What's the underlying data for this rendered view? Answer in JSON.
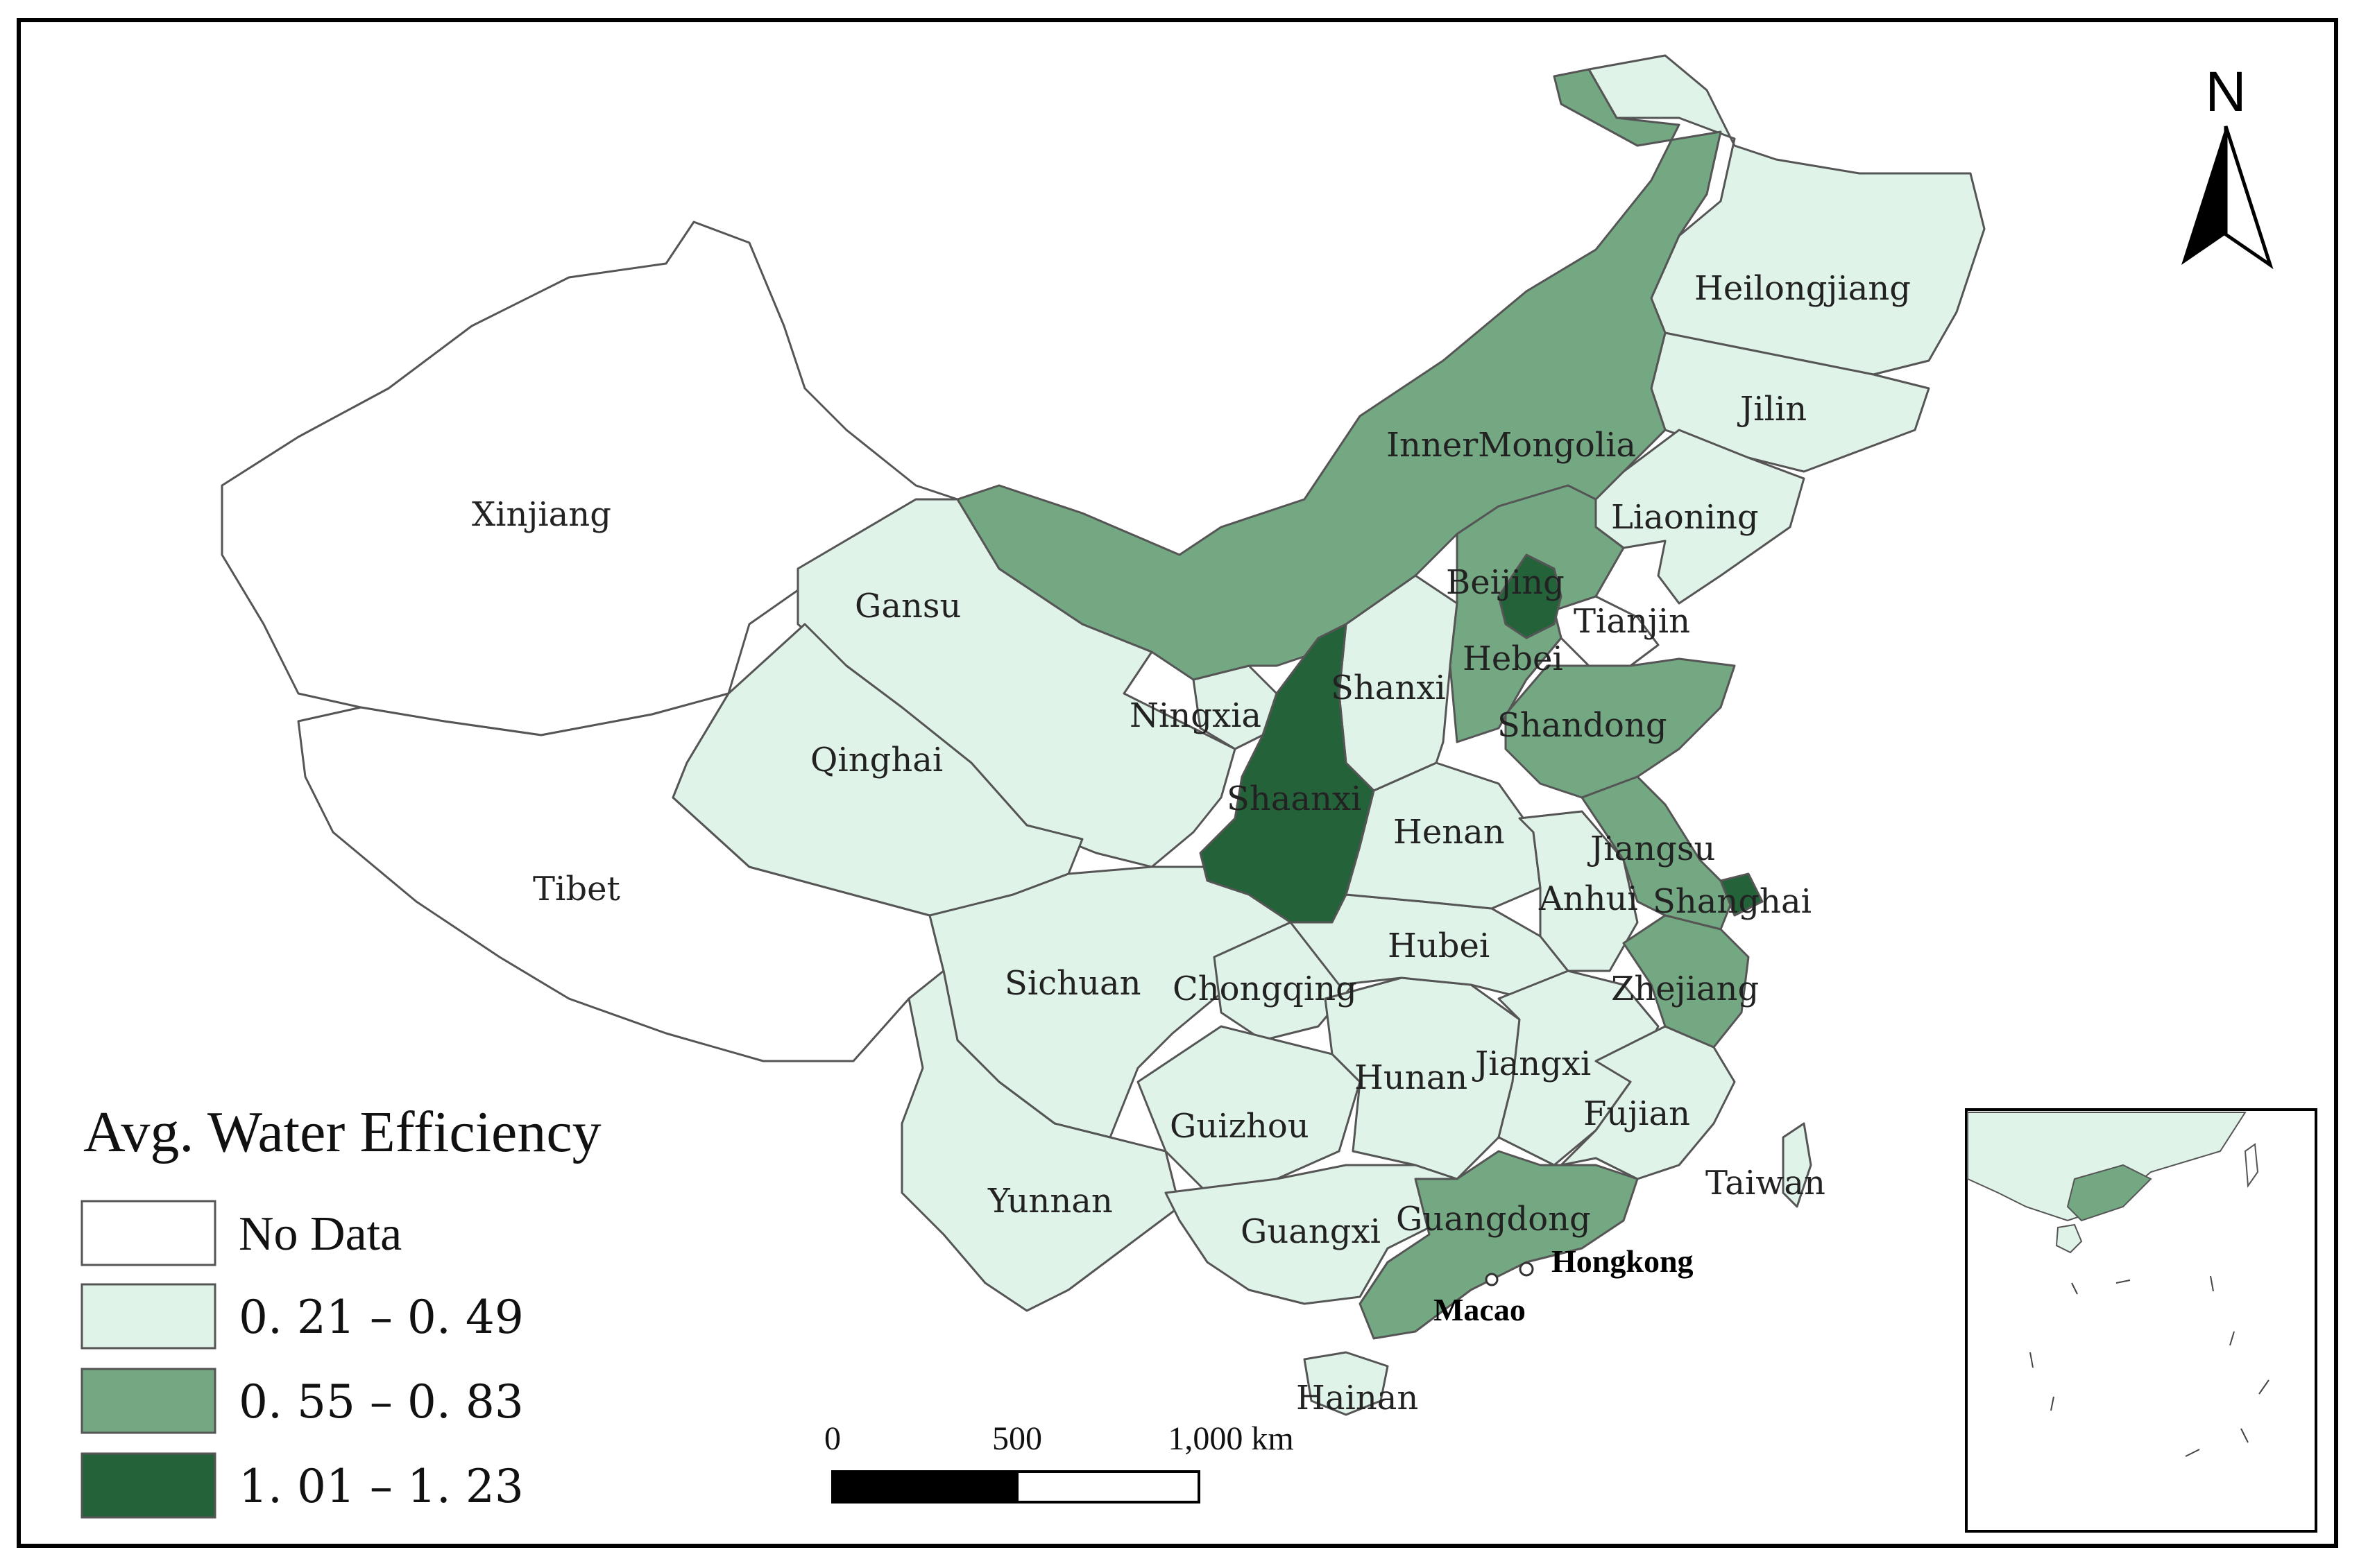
{
  "legend": {
    "title": "Avg. Water Efficiency",
    "classes": [
      {
        "label": "No Data",
        "color": "#ffffff"
      },
      {
        "label": "0. 21 – 0. 49",
        "color": "#dff3e8"
      },
      {
        "label": "0. 55 – 0. 83",
        "color": "#73a883"
      },
      {
        "label": "1. 01 – 1. 23",
        "color": "#24623a"
      }
    ]
  },
  "north_arrow": {
    "label": "N"
  },
  "scale_bar": {
    "ticks": [
      "0",
      "500",
      "1,000 km"
    ]
  },
  "provinces": {
    "xinjiang": "Xinjiang",
    "tibet": "Tibet",
    "qinghai": "Qinghai",
    "gansu": "Gansu",
    "inner_mongolia": "InnerMongolia",
    "heilongjiang": "Heilongjiang",
    "jilin": "Jilin",
    "liaoning": "Liaoning",
    "beijing": "Beijing",
    "tianjin": "Tianjin",
    "hebei": "Hebei",
    "shanxi": "Shanxi",
    "shandong": "Shandong",
    "ningxia": "Ningxia",
    "shaanxi": "Shaanxi",
    "henan": "Henan",
    "jiangsu": "Jiangsu",
    "anhui": "Anhui",
    "shanghai": "Shanghai",
    "hubei": "Hubei",
    "sichuan": "Sichuan",
    "chongqing": "Chongqing",
    "zhejiang": "Zhejiang",
    "hunan": "Hunan",
    "jiangxi": "Jiangxi",
    "guizhou": "Guizhou",
    "fujian": "Fujian",
    "yunnan": "Yunnan",
    "guangxi": "Guangxi",
    "guangdong": "Guangdong",
    "taiwan": "Taiwan",
    "hainan": "Hainan"
  },
  "cities": {
    "hongkong": "Hongkong",
    "macao": "Macao"
  }
}
